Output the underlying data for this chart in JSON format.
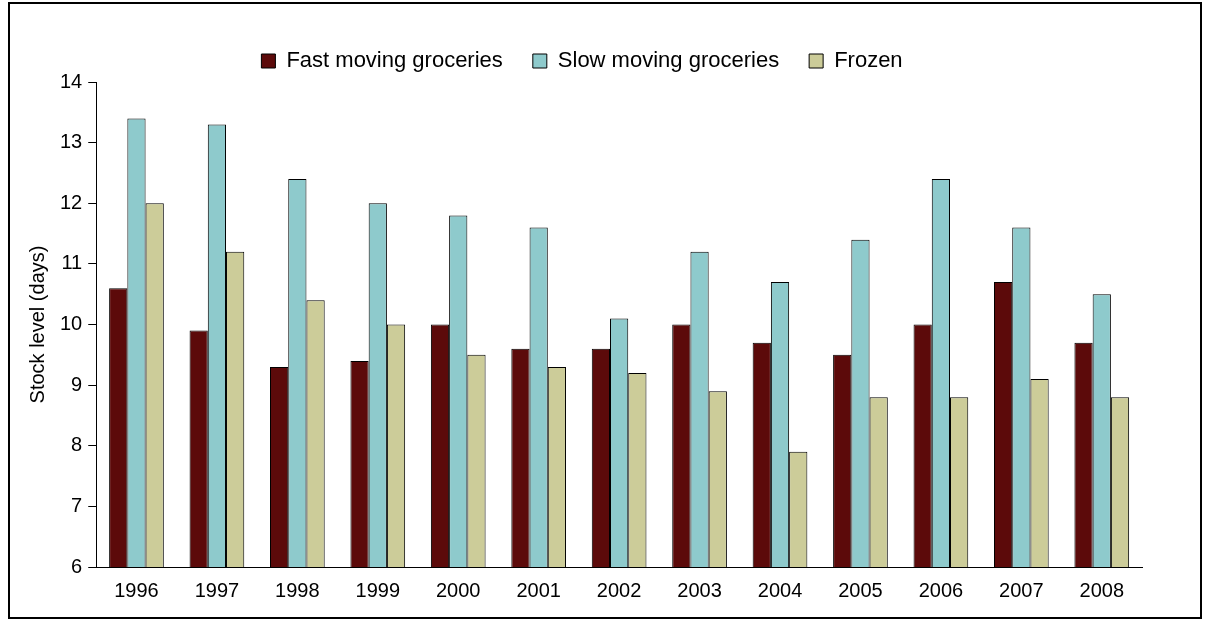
{
  "chart_data": {
    "type": "bar",
    "ylabel": "Stock level (days)",
    "categories": [
      "1996",
      "1997",
      "1998",
      "1999",
      "2000",
      "2001",
      "2002",
      "2003",
      "2004",
      "2005",
      "2006",
      "2007",
      "2008"
    ],
    "series": [
      {
        "name": "Fast moving groceries",
        "color": "#5c0a0a",
        "values": [
          10.6,
          9.9,
          9.3,
          9.4,
          10.0,
          9.6,
          9.6,
          10.0,
          9.7,
          9.5,
          10.0,
          10.7,
          9.7
        ]
      },
      {
        "name": "Slow moving groceries",
        "color": "#8ecacc",
        "values": [
          13.4,
          13.3,
          12.4,
          12.0,
          11.8,
          11.6,
          10.1,
          11.2,
          10.7,
          11.4,
          12.4,
          11.6,
          10.5
        ]
      },
      {
        "name": "Frozen",
        "color": "#cccc99",
        "values": [
          12.0,
          11.2,
          10.4,
          10.0,
          9.5,
          9.3,
          9.2,
          8.9,
          7.9,
          8.8,
          8.8,
          9.1,
          8.8
        ]
      }
    ],
    "ylim": [
      6,
      14
    ],
    "yticks": [
      6,
      7,
      8,
      9,
      10,
      11,
      12,
      13,
      14
    ],
    "grid": false,
    "legend": "top"
  }
}
